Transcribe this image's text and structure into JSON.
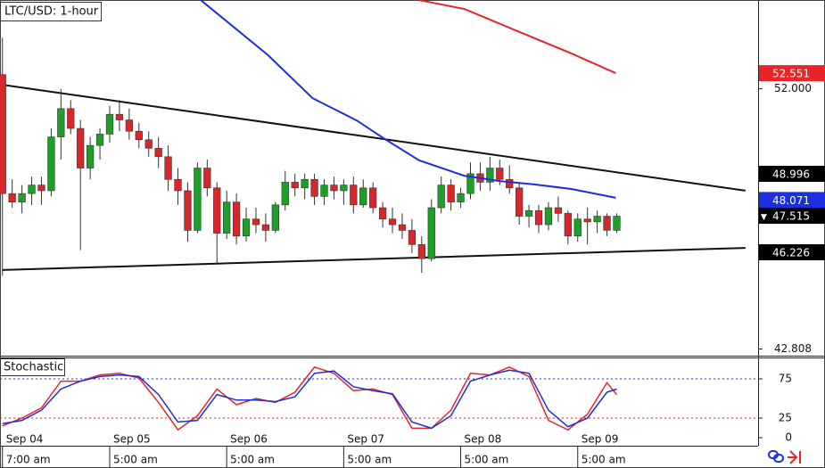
{
  "chart_data": {
    "type": "candlestick",
    "title": "LTC/USD: 1-hour",
    "x": [
      0,
      2,
      4,
      6,
      8,
      10,
      12,
      14,
      16,
      18,
      20,
      22,
      24,
      26,
      28,
      30,
      32,
      34,
      36,
      38,
      40,
      42,
      44,
      46,
      48,
      50,
      52,
      54,
      56,
      58,
      60,
      62,
      64,
      66,
      68,
      70,
      72,
      74,
      76,
      78,
      80,
      82,
      84,
      86,
      88,
      90,
      92,
      94,
      96,
      98,
      100,
      102,
      104,
      106,
      108,
      110,
      112,
      114,
      116,
      118,
      120,
      122,
      124,
      126
    ],
    "candles": [
      [
        52.5,
        53.8,
        45.4,
        48.3
      ],
      [
        48.3,
        48.8,
        47.8,
        48.0
      ],
      [
        48.0,
        48.6,
        47.6,
        48.3
      ],
      [
        48.3,
        48.9,
        47.9,
        48.6
      ],
      [
        48.6,
        48.9,
        47.9,
        48.4
      ],
      [
        48.4,
        50.6,
        48.2,
        50.3
      ],
      [
        50.3,
        52.0,
        49.5,
        51.3
      ],
      [
        51.3,
        51.6,
        50.4,
        50.6
      ],
      [
        50.6,
        50.9,
        46.3,
        49.2
      ],
      [
        49.2,
        50.3,
        48.8,
        50.0
      ],
      [
        50.0,
        50.6,
        49.5,
        50.4
      ],
      [
        50.4,
        51.4,
        50.1,
        51.1
      ],
      [
        51.1,
        51.6,
        50.5,
        50.9
      ],
      [
        50.9,
        51.3,
        50.2,
        50.5
      ],
      [
        50.5,
        50.8,
        49.9,
        50.2
      ],
      [
        50.2,
        50.5,
        49.6,
        49.9
      ],
      [
        49.9,
        50.3,
        49.2,
        49.6
      ],
      [
        49.6,
        50.0,
        48.4,
        48.8
      ],
      [
        48.8,
        49.2,
        47.9,
        48.4
      ],
      [
        48.4,
        48.7,
        46.6,
        47.0
      ],
      [
        47.0,
        49.4,
        46.9,
        49.2
      ],
      [
        49.2,
        49.5,
        48.2,
        48.5
      ],
      [
        48.5,
        48.7,
        45.8,
        46.9
      ],
      [
        46.9,
        48.4,
        46.7,
        48.0
      ],
      [
        48.0,
        48.3,
        46.5,
        46.8
      ],
      [
        46.8,
        47.8,
        46.6,
        47.4
      ],
      [
        47.4,
        47.8,
        46.9,
        47.2
      ],
      [
        47.2,
        47.6,
        46.6,
        47.0
      ],
      [
        47.0,
        48.0,
        46.9,
        47.9
      ],
      [
        47.9,
        49.1,
        47.7,
        48.7
      ],
      [
        48.7,
        49.0,
        48.2,
        48.5
      ],
      [
        48.5,
        49.0,
        48.1,
        48.8
      ],
      [
        48.8,
        49.0,
        47.9,
        48.2
      ],
      [
        48.2,
        48.8,
        47.9,
        48.6
      ],
      [
        48.6,
        48.9,
        48.1,
        48.4
      ],
      [
        48.4,
        48.8,
        47.9,
        48.6
      ],
      [
        48.6,
        48.9,
        47.6,
        47.9
      ],
      [
        47.9,
        48.8,
        47.8,
        48.5
      ],
      [
        48.5,
        48.7,
        47.6,
        47.8
      ],
      [
        47.8,
        48.0,
        47.1,
        47.4
      ],
      [
        47.4,
        47.8,
        46.9,
        47.2
      ],
      [
        47.2,
        47.6,
        46.7,
        47.0
      ],
      [
        47.0,
        47.4,
        46.2,
        46.5
      ],
      [
        46.5,
        46.8,
        45.5,
        46.0
      ],
      [
        46.0,
        48.1,
        45.9,
        47.8
      ],
      [
        47.8,
        48.9,
        47.6,
        48.6
      ],
      [
        48.6,
        48.8,
        47.7,
        48.0
      ],
      [
        48.0,
        48.5,
        47.8,
        48.3
      ],
      [
        48.3,
        49.4,
        48.1,
        49.0
      ],
      [
        49.0,
        49.4,
        48.4,
        48.7
      ],
      [
        48.7,
        49.6,
        48.4,
        49.2
      ],
      [
        49.2,
        49.5,
        48.6,
        48.8
      ],
      [
        48.8,
        49.3,
        48.3,
        48.5
      ],
      [
        48.5,
        48.7,
        47.2,
        47.5
      ],
      [
        47.5,
        47.9,
        47.1,
        47.7
      ],
      [
        47.7,
        47.9,
        46.9,
        47.2
      ],
      [
        47.2,
        48.0,
        47.0,
        47.8
      ],
      [
        47.8,
        48.2,
        47.3,
        47.6
      ],
      [
        47.6,
        47.7,
        46.5,
        46.8
      ],
      [
        46.8,
        47.6,
        46.6,
        47.4
      ],
      [
        47.4,
        47.8,
        46.5,
        47.3
      ],
      [
        47.3,
        47.7,
        46.9,
        47.5
      ],
      [
        47.5,
        47.6,
        46.8,
        47.0
      ],
      [
        47.0,
        47.6,
        46.9,
        47.5
      ]
    ],
    "up_color": "#1f9e2a",
    "down_color": "#d8262a",
    "xlim": [
      -0.5,
      155
    ],
    "ylim": [
      42.606,
      55.135
    ],
    "yticks": [
      {
        "value": 52,
        "label": "52.000"
      },
      42.808
    ],
    "xticks": [
      {
        "value": 0,
        "label": "7:00 am"
      },
      {
        "value": 22,
        "label": "5:00 am"
      },
      {
        "value": 46,
        "label": "5:00 am"
      },
      {
        "value": 70,
        "label": "5:00 am"
      },
      {
        "value": 94,
        "label": "5:00 am"
      },
      {
        "value": 118,
        "label": "5:00 am"
      }
    ],
    "date_labels": [
      {
        "value": 0,
        "label": "Sep 04"
      },
      {
        "value": 22,
        "label": "Sep 05"
      },
      {
        "value": 46,
        "label": "Sep 06"
      },
      {
        "value": 70,
        "label": "Sep 07"
      },
      {
        "value": 94,
        "label": "Sep 08"
      },
      {
        "value": 118,
        "label": "Sep 09"
      }
    ],
    "price_labels": [
      {
        "value": 52.551,
        "color": "#e8262a"
      },
      {
        "value": 48.996,
        "color": "#000000"
      },
      {
        "value": 48.071,
        "color": "#1b2ee0"
      },
      {
        "value": 47.515,
        "color": "#000000"
      },
      {
        "value": 46.226,
        "color": "#000000"
      }
    ],
    "series": [
      {
        "color": "#1b2ee0",
        "x": [
          40.7,
          54.4,
          63.6,
          72.7,
          78.2,
          85.5,
          94.7,
          102,
          109.3,
          116.7,
          125.8
        ],
        "values": [
          55.13,
          53.2,
          51.67,
          50.88,
          50.25,
          49.47,
          48.93,
          48.74,
          48.62,
          48.46,
          48.15
        ]
      },
      {
        "color": "#e8262a",
        "x": [
          85.5,
          94.7,
          105.7,
          116.7,
          125.8
        ],
        "values": [
          55.13,
          54.82,
          54.03,
          53.25,
          52.55
        ]
      }
    ],
    "trendlines": [
      {
        "color": "#111111",
        "x": [
          0,
          152.4
        ],
        "values": [
          52.14,
          48.4
        ]
      },
      {
        "color": "#111111",
        "x": [
          0,
          152.4
        ],
        "values": [
          45.6,
          46.38
        ]
      }
    ],
    "indicator": {
      "title": "Stochastic",
      "x": [
        0,
        4,
        8,
        12,
        16,
        20,
        24,
        28,
        32,
        36,
        40,
        44,
        48,
        52,
        56,
        60,
        64,
        68,
        72,
        76,
        80,
        84,
        88,
        92,
        96,
        100,
        104,
        108,
        112,
        116,
        120,
        124,
        126
      ],
      "series": [
        {
          "color": "#e8262a",
          "values": [
            15,
            25,
            38,
            72,
            72,
            80,
            82,
            76,
            45,
            10,
            28,
            62,
            42,
            50,
            45,
            58,
            90,
            82,
            60,
            62,
            55,
            12,
            12,
            35,
            82,
            80,
            90,
            78,
            22,
            10,
            30,
            70,
            55
          ]
        },
        {
          "color": "#1b2ee0",
          "values": [
            18,
            22,
            35,
            62,
            72,
            78,
            80,
            78,
            55,
            20,
            22,
            55,
            48,
            48,
            46,
            52,
            82,
            85,
            65,
            60,
            56,
            20,
            12,
            28,
            72,
            80,
            86,
            82,
            35,
            14,
            25,
            58,
            62
          ]
        }
      ],
      "ylim": [
        0,
        100
      ],
      "yticks": [
        75,
        25,
        0
      ],
      "level_colors": [
        "#2233cc",
        "#dd2222",
        null
      ]
    }
  }
}
